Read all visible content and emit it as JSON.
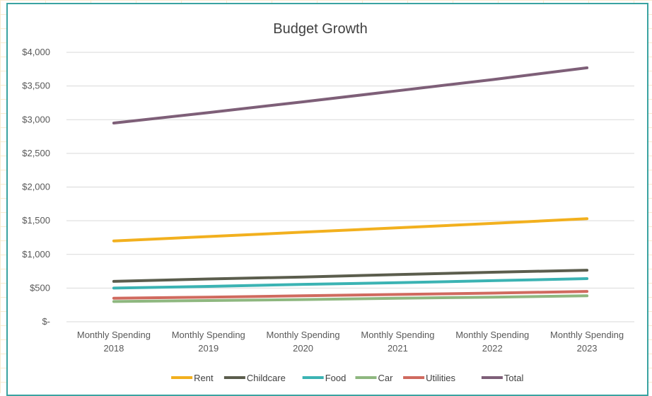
{
  "chart_data": {
    "type": "line",
    "title": "Budget Growth",
    "xlabel": "",
    "ylabel": "",
    "categories": [
      [
        "Monthly Spending",
        "2018"
      ],
      [
        "Monthly Spending",
        "2019"
      ],
      [
        "Monthly Spending",
        "2020"
      ],
      [
        "Monthly Spending",
        "2021"
      ],
      [
        "Monthly Spending",
        "2022"
      ],
      [
        "Monthly Spending",
        "2023"
      ]
    ],
    "ylim": [
      0,
      4000
    ],
    "yticks": [
      0,
      500,
      1000,
      1500,
      2000,
      2500,
      3000,
      3500,
      4000
    ],
    "ytick_labels": [
      "$-",
      "$500",
      "$1,000",
      "$1,500",
      "$2,000",
      "$2,500",
      "$3,000",
      "$3,500",
      "$4,000"
    ],
    "grid": true,
    "legend_position": "bottom",
    "series": [
      {
        "name": "Rent",
        "color": "#f2b01e",
        "values": [
          1200,
          1265,
          1330,
          1395,
          1460,
          1530
        ]
      },
      {
        "name": "Childcare",
        "color": "#5b5d4d",
        "values": [
          600,
          635,
          665,
          700,
          735,
          765
        ]
      },
      {
        "name": "Food",
        "color": "#3bb3b3",
        "values": [
          500,
          525,
          555,
          580,
          610,
          640
        ]
      },
      {
        "name": "Car",
        "color": "#8eb77f",
        "values": [
          300,
          315,
          330,
          350,
          365,
          385
        ]
      },
      {
        "name": "Utilities",
        "color": "#d06a5f",
        "values": [
          350,
          365,
          385,
          405,
          425,
          450
        ]
      },
      {
        "name": "Total",
        "color": "#7e5f78",
        "values": [
          2950,
          3105,
          3265,
          3430,
          3595,
          3770
        ]
      }
    ]
  }
}
